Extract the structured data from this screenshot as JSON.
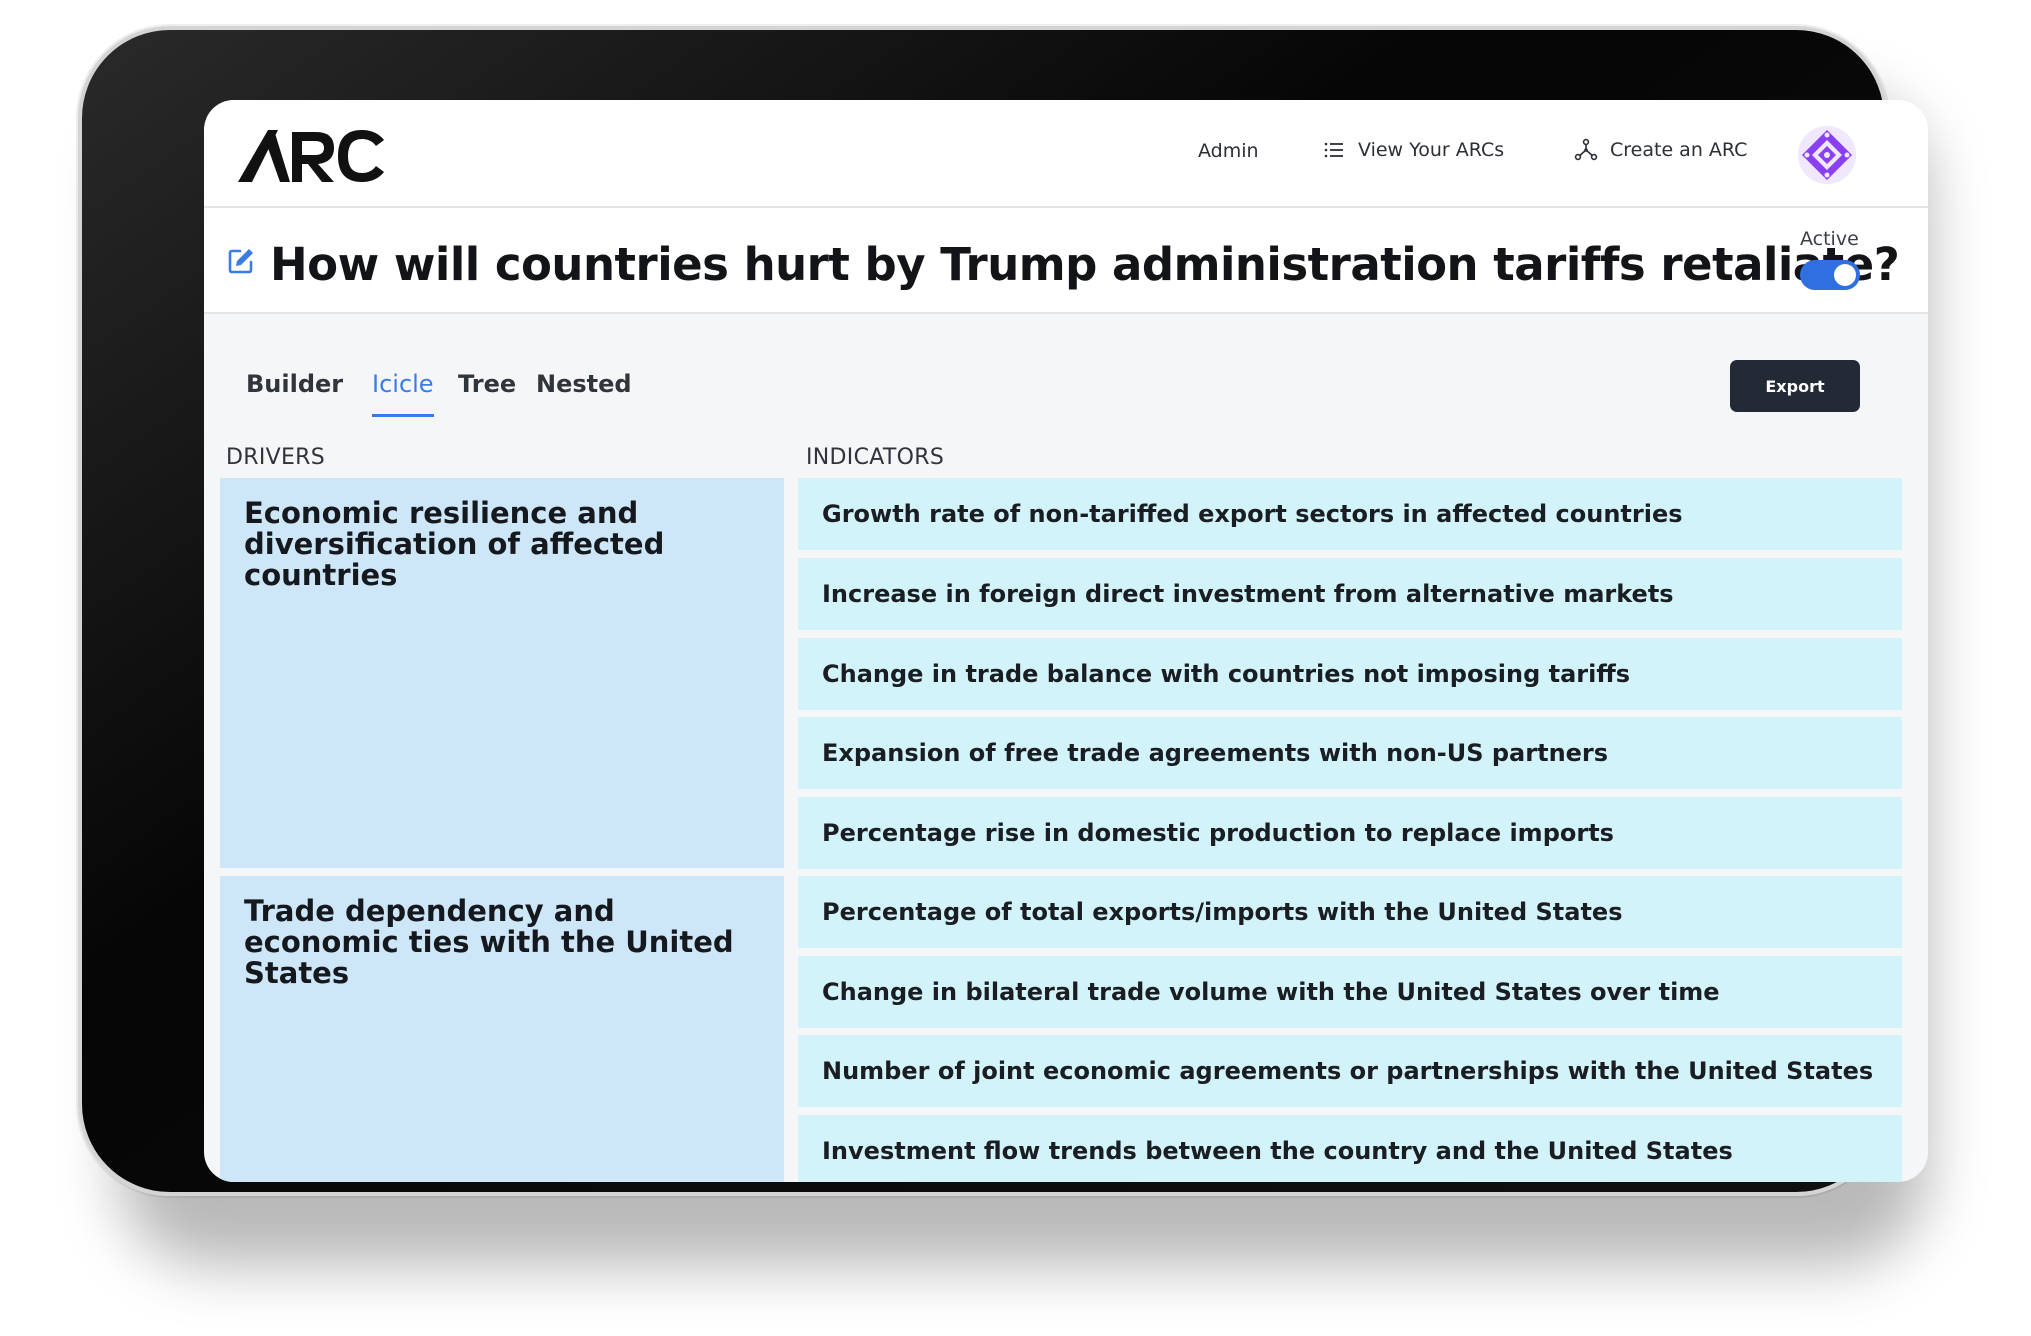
{
  "header": {
    "logo_text": "ARC",
    "nav": {
      "admin": "Admin",
      "view_arcs": "View Your ARCs",
      "create_arc": "Create an ARC"
    }
  },
  "arc": {
    "title": "How will countries hurt by Trump administration tariffs retaliate?",
    "status_label": "Active",
    "status_on": true
  },
  "tabs": [
    {
      "label": "Builder",
      "active": false
    },
    {
      "label": "Icicle",
      "active": true
    },
    {
      "label": "Tree",
      "active": false
    },
    {
      "label": "Nested",
      "active": false
    }
  ],
  "toolbar": {
    "export_label": "Export"
  },
  "columns": {
    "drivers": "DRIVERS",
    "indicators": "INDICATORS"
  },
  "drivers": [
    {
      "label": "Economic resilience and diversification of affected countries",
      "indicators": [
        "Growth rate of non-tariffed export sectors in affected countries",
        "Increase in foreign direct investment from alternative markets",
        "Change in trade balance with countries not imposing tariffs",
        "Expansion of free trade agreements with non-US partners",
        "Percentage rise in domestic production to replace imports"
      ]
    },
    {
      "label": "Trade dependency and economic ties with the United States",
      "indicators": [
        "Percentage of total exports/imports with the United States",
        "Change in bilateral trade volume with the United States over time",
        "Number of joint economic agreements or partnerships with the United States",
        "Investment flow trends between the country and the United States"
      ]
    }
  ],
  "colors": {
    "accent": "#3b7be5",
    "driver_bg": "#cde7f9",
    "indicator_bg": "#d3f3fb",
    "export_bg": "#232a36",
    "avatar": "#8a3ff0"
  }
}
